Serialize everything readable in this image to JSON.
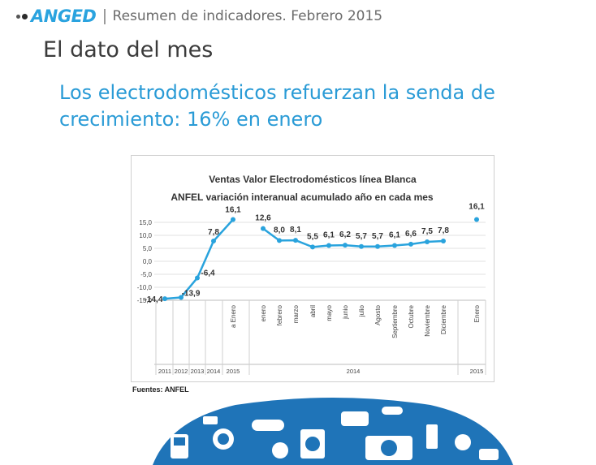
{
  "header": {
    "brand": "ANGED",
    "separator": "|",
    "subtitle": "Resumen de indicadores. Febrero 2015"
  },
  "title": "El dato del mes",
  "headline": "Los electrodomésticos refuerzan la senda de crecimiento: 16% en enero",
  "source": "Fuentes: ANFEL",
  "colors": {
    "accent": "#2a9bd6",
    "series": "#29a3dd",
    "text": "#3b3b3b"
  },
  "decoration": "appliance-icons-globe",
  "chart_data": {
    "type": "line",
    "title": "Ventas Valor Electrodomésticos línea Blanca",
    "subtitle": "ANFEL  variación interanual  acumulado año en cada mes",
    "ylim": [
      -15,
      15
    ],
    "yticks": [
      "15,0",
      "10,0",
      "5,0",
      "0,0",
      "-5,0",
      "-10,0",
      "-15,0"
    ],
    "yticks_values": [
      15,
      10,
      5,
      0,
      -5,
      -10,
      -15
    ],
    "grid": true,
    "categories": [
      "",
      "",
      "",
      "",
      "a Enero",
      "enero",
      "febrero",
      "marzo",
      "abril",
      "mayo",
      "junio",
      "julio",
      "Agosto",
      "Septiembre",
      "Octubre",
      "Noviembre",
      "Diciembre",
      "Enero"
    ],
    "groups": [
      {
        "label": "2011",
        "from": 0,
        "to": 0
      },
      {
        "label": "2012",
        "from": 1,
        "to": 1
      },
      {
        "label": "2013",
        "from": 2,
        "to": 2
      },
      {
        "label": "2014",
        "from": 3,
        "to": 3
      },
      {
        "label": "2015",
        "from": 4,
        "to": 4
      },
      {
        "label": "2014",
        "from": 5,
        "to": 16
      },
      {
        "label": "2015",
        "from": 17,
        "to": 17
      }
    ],
    "series": [
      {
        "segments": [
          {
            "from": 0,
            "values": [
              -14.4,
              -13.9,
              -6.4,
              7.8,
              16.1
            ]
          },
          {
            "from": 5,
            "values": [
              12.6,
              8.0,
              8.1,
              5.5,
              6.1,
              6.2,
              5.7,
              5.7,
              6.1,
              6.6,
              7.5,
              7.8
            ]
          },
          {
            "from": 17,
            "values": [
              16.1
            ]
          }
        ],
        "labels": [
          "-14,4",
          "-13,9",
          "-6,4",
          "7,8",
          "16,1",
          "12,6",
          "8,0",
          "8,1",
          "5,5",
          "6,1",
          "6,2",
          "5,7",
          "5,7",
          "6,1",
          "6,6",
          "7,5",
          "7,8",
          "16,1"
        ]
      }
    ]
  }
}
